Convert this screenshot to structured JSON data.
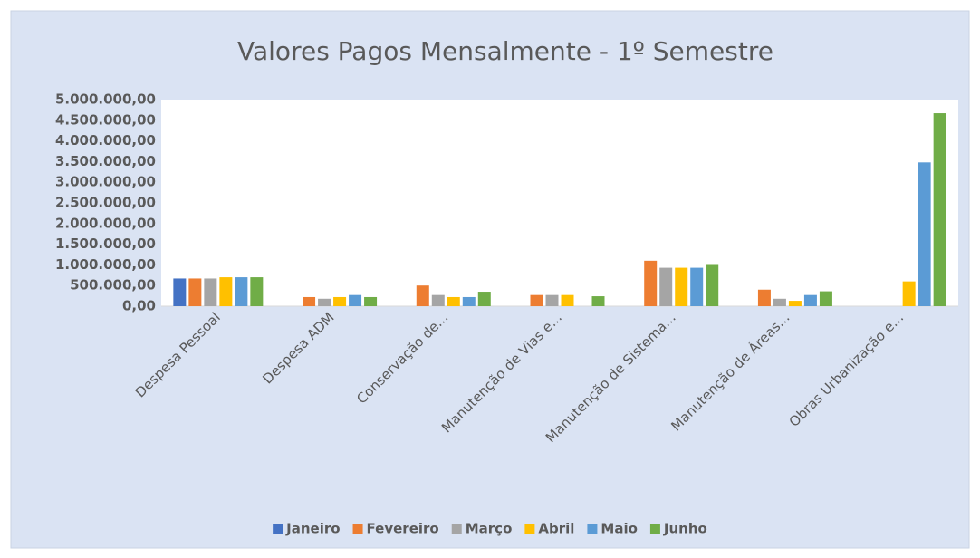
{
  "chart_data": {
    "type": "bar",
    "title": "Valores Pagos Mensalmente - 1º Semestre",
    "categories": [
      "Despesa Pessoal",
      "Despesa ADM",
      "Conservação de...",
      "Manutenção de Vias e...",
      "Manutenção de Sistema...",
      "Manutenção de Áreas...",
      "Obras Urbanização e..."
    ],
    "series": [
      {
        "name": "Janeiro",
        "color": "#4472c4",
        "values": [
          670000,
          null,
          null,
          null,
          null,
          null,
          null
        ]
      },
      {
        "name": "Fevereiro",
        "color": "#ed7d31",
        "values": [
          670000,
          220000,
          500000,
          270000,
          1100000,
          400000,
          null
        ]
      },
      {
        "name": "Março",
        "color": "#a5a5a5",
        "values": [
          670000,
          180000,
          270000,
          270000,
          930000,
          180000,
          null
        ]
      },
      {
        "name": "Abril",
        "color": "#ffc000",
        "values": [
          700000,
          220000,
          220000,
          270000,
          930000,
          130000,
          600000
        ]
      },
      {
        "name": "Maio",
        "color": "#5b9bd5",
        "values": [
          700000,
          270000,
          220000,
          null,
          930000,
          270000,
          3480000
        ]
      },
      {
        "name": "Junho",
        "color": "#70ad47",
        "values": [
          700000,
          220000,
          350000,
          240000,
          1020000,
          360000,
          4670000
        ]
      }
    ],
    "ylim": [
      0,
      5000000
    ],
    "yticks": [
      {
        "value": 0,
        "label": "0,00"
      },
      {
        "value": 500000,
        "label": "500.000,00"
      },
      {
        "value": 1000000,
        "label": "1.000.000,00"
      },
      {
        "value": 1500000,
        "label": "1.500.000,00"
      },
      {
        "value": 2000000,
        "label": "2.000.000,00"
      },
      {
        "value": 2500000,
        "label": "2.500.000,00"
      },
      {
        "value": 3000000,
        "label": "3.000.000,00"
      },
      {
        "value": 3500000,
        "label": "3.500.000,00"
      },
      {
        "value": 4000000,
        "label": "4.000.000,00"
      },
      {
        "value": 4500000,
        "label": "4.500.000,00"
      },
      {
        "value": 5000000,
        "label": "5.000.000,00"
      }
    ],
    "grid": false,
    "legend": "bottom"
  }
}
